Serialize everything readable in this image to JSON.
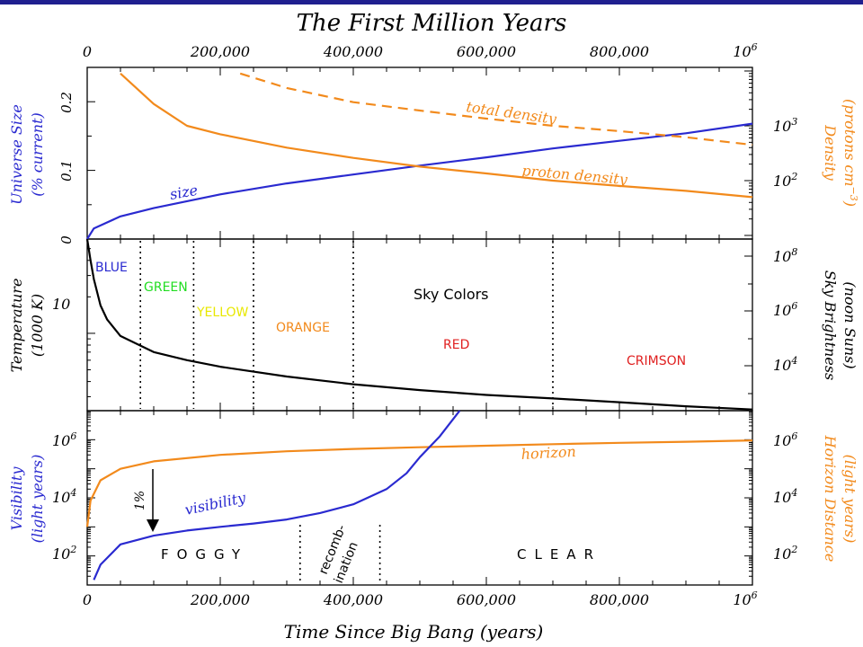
{
  "title": "The First Million Years",
  "xlabel": "Time Since Big Bang (years)",
  "x_ticks": [
    "0",
    "200,000",
    "400,000",
    "600,000",
    "800,000",
    "10"
  ],
  "x_ticks_top": [
    "0",
    "200,000",
    "400,000",
    "600,000",
    "800,000",
    "10"
  ],
  "x_last_exponent": "6",
  "colors": {
    "blue": "#2a2ad0",
    "orange": "#f28a1c",
    "black": "#000000",
    "green": "#22dd22",
    "yellow": "#e8e800",
    "red": "#e02020",
    "topbar": "#1f1f8f"
  },
  "chart_data": [
    {
      "panel": "top",
      "type": "line",
      "xlim": [
        0,
        1000000
      ],
      "left_axis": {
        "label_line1": "Universe Size",
        "label_line2": "(% current)",
        "ticks": [
          "0",
          "0.1",
          "0.2"
        ],
        "ylim": [
          0,
          0.25
        ]
      },
      "right_axis": {
        "label_line1": "Density",
        "label_line2": "(protons cm",
        "label_exponent": "−3",
        "label_close": ")",
        "scale": "log",
        "ticks": [
          "10",
          "10"
        ],
        "tick_exponents": [
          "2",
          "3"
        ]
      },
      "series": [
        {
          "name": "size",
          "axis": "left",
          "color": "#2a2ad0",
          "style": "solid",
          "x": [
            0,
            10000,
            50000,
            100000,
            200000,
            300000,
            400000,
            500000,
            600000,
            700000,
            800000,
            900000,
            1000000
          ],
          "y": [
            0,
            0.0155,
            0.033,
            0.045,
            0.065,
            0.081,
            0.094,
            0.107,
            0.119,
            0.132,
            0.143,
            0.154,
            0.168
          ]
        },
        {
          "name": "total density",
          "axis": "right",
          "color": "#f28a1c",
          "style": "dashed",
          "x": [
            230000,
            300000,
            400000,
            500000,
            600000,
            700000,
            800000,
            900000,
            1000000
          ],
          "y": [
            9000,
            4900,
            2700,
            1900,
            1350,
            1000,
            800,
            620,
            450
          ]
        },
        {
          "name": "proton density",
          "axis": "right",
          "color": "#f28a1c",
          "style": "solid",
          "x": [
            50000,
            100000,
            150000,
            200000,
            300000,
            400000,
            500000,
            600000,
            700000,
            800000,
            900000,
            1000000
          ],
          "y": [
            9000,
            2500,
            1000,
            700,
            400,
            260,
            180,
            135,
            100,
            80,
            65,
            50
          ]
        }
      ]
    },
    {
      "panel": "middle",
      "type": "line",
      "xlim": [
        0,
        1000000
      ],
      "left_axis": {
        "label_line1": "Temperature",
        "label_line2": "(1000 K)",
        "scale": "log",
        "ticks": [
          "10"
        ],
        "tick_values": [
          10
        ],
        "ylim": [
          2.3,
          60
        ]
      },
      "right_axis": {
        "label_line1": "Sky Brightness",
        "label_line2": "(noon Suns)",
        "scale": "log",
        "ticks": [
          "10",
          "10",
          "10"
        ],
        "tick_exponents": [
          "4",
          "6",
          "8"
        ]
      },
      "series": [
        {
          "name": "temperature",
          "axis": "left",
          "color": "#000000",
          "style": "solid",
          "x": [
            0,
            5000,
            10000,
            20000,
            30000,
            50000,
            100000,
            150000,
            200000,
            300000,
            400000,
            500000,
            600000,
            700000,
            800000,
            900000,
            1000000
          ],
          "y": [
            60,
            40,
            28,
            17,
            13,
            9.5,
            7,
            6,
            5.3,
            4.4,
            3.8,
            3.4,
            3.1,
            2.9,
            2.7,
            2.5,
            2.35
          ]
        }
      ],
      "boundaries_x": [
        80000,
        160000,
        250000,
        400000,
        700000
      ],
      "sky_colors_label": "Sky Colors",
      "colors_bands": [
        {
          "name": "BLUE",
          "color": "#2a2ad0"
        },
        {
          "name": "GREEN",
          "color": "#22dd22"
        },
        {
          "name": "YELLOW",
          "color": "#e8e800"
        },
        {
          "name": "ORANGE",
          "color": "#f28a1c"
        },
        {
          "name": "RED",
          "color": "#e02020"
        },
        {
          "name": "CRIMSON",
          "color": "#e02020"
        }
      ]
    },
    {
      "panel": "bottom",
      "type": "line",
      "xlim": [
        0,
        1000000
      ],
      "left_axis": {
        "label_line1": "Visibility",
        "label_line2": "(light years)",
        "scale": "log",
        "ticks": [
          "10",
          "10",
          "10"
        ],
        "tick_exponents": [
          "2",
          "4",
          "6"
        ]
      },
      "right_axis": {
        "label_line1": "Horizon Distance",
        "label_line2": "(light years)",
        "scale": "log",
        "ticks": [
          "10",
          "10",
          "10"
        ],
        "tick_exponents": [
          "2",
          "4",
          "6"
        ]
      },
      "ylim": [
        10,
        10000000
      ],
      "series": [
        {
          "name": "horizon",
          "color": "#f28a1c",
          "style": "solid",
          "x": [
            0,
            5000,
            20000,
            50000,
            100000,
            200000,
            300000,
            400000,
            500000,
            600000,
            700000,
            800000,
            900000,
            1000000
          ],
          "y": [
            1000,
            8000,
            40000,
            100000,
            180000,
            300000,
            400000,
            480000,
            550000,
            620000,
            700000,
            780000,
            850000,
            950000
          ]
        },
        {
          "name": "visibility",
          "color": "#2a2ad0",
          "style": "solid",
          "x": [
            10000,
            20000,
            50000,
            100000,
            150000,
            200000,
            250000,
            300000,
            350000,
            400000,
            450000,
            480000,
            500000,
            530000,
            560000
          ],
          "y": [
            15,
            50,
            250,
            500,
            750,
            1000,
            1300,
            1800,
            3000,
            6000,
            20000,
            70000,
            250000,
            1300000,
            10000000
          ]
        }
      ],
      "recombination_x": [
        320000,
        440000
      ],
      "annotations": {
        "foggy": "FOGGY",
        "clear": "CLEAR",
        "recomb_line1": "recomb-",
        "recomb_line2": "ination",
        "arrow_label": "1%"
      }
    }
  ]
}
